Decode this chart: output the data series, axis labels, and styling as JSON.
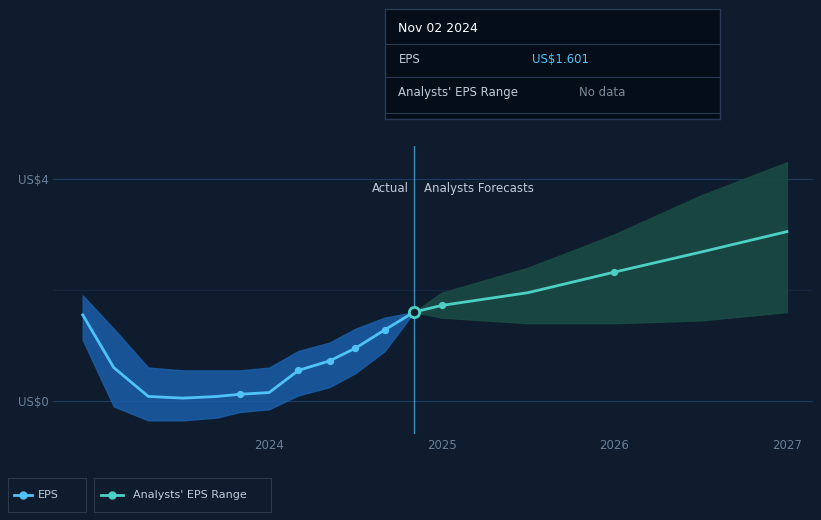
{
  "bg_color": "#0e1c2e",
  "plot_bg_color": "#0e1c2e",
  "eps_x": [
    2022.92,
    2023.1,
    2023.3,
    2023.5,
    2023.7,
    2023.83,
    2024.0,
    2024.17,
    2024.35,
    2024.5,
    2024.67,
    2024.84
  ],
  "eps_y": [
    1.55,
    0.6,
    0.08,
    0.05,
    0.08,
    0.12,
    0.15,
    0.55,
    0.72,
    0.95,
    1.28,
    1.601
  ],
  "eps_band_upper": [
    1.9,
    1.3,
    0.6,
    0.55,
    0.55,
    0.55,
    0.6,
    0.9,
    1.05,
    1.3,
    1.5,
    1.601
  ],
  "eps_band_lower": [
    1.1,
    -0.1,
    -0.35,
    -0.35,
    -0.3,
    -0.2,
    -0.15,
    0.1,
    0.25,
    0.5,
    0.9,
    1.601
  ],
  "forecast_x": [
    2024.84,
    2025.0,
    2025.5,
    2026.0,
    2026.5,
    2027.0
  ],
  "forecast_y": [
    1.601,
    1.72,
    1.95,
    2.32,
    2.68,
    3.05
  ],
  "forecast_band_upper": [
    1.601,
    1.95,
    2.4,
    3.0,
    3.7,
    4.3
  ],
  "forecast_band_lower": [
    1.601,
    1.5,
    1.4,
    1.4,
    1.45,
    1.6
  ],
  "divider_x": 2024.84,
  "ylim_min": -0.6,
  "ylim_max": 4.6,
  "xlim_min": 2022.75,
  "xlim_max": 2027.15,
  "ytick_labels": [
    "US$0",
    "US$4"
  ],
  "ytick_values": [
    0,
    4
  ],
  "xtick_labels": [
    "2024",
    "2025",
    "2026",
    "2027"
  ],
  "xtick_values": [
    2024,
    2025,
    2026,
    2027
  ],
  "actual_label": "Actual",
  "forecast_label": "Analysts Forecasts",
  "eps_line_color": "#4fc3f7",
  "eps_band_color": "#1a5fa8",
  "forecast_line_color": "#4dd0c4",
  "forecast_band_color": "#1a4a44",
  "tooltip_title": "Nov 02 2024",
  "tooltip_eps_label": "EPS",
  "tooltip_eps_value": "US$1.601",
  "tooltip_range_label": "Analysts' EPS Range",
  "tooltip_range_value": "No data",
  "tooltip_value_color": "#4fc3f7",
  "tooltip_gray_color": "#7a8a9a",
  "grid_color": "#1e3a5f",
  "divider_color": "#4fc3f7",
  "text_color": "#c0ccd8",
  "label_color": "#6a8098"
}
